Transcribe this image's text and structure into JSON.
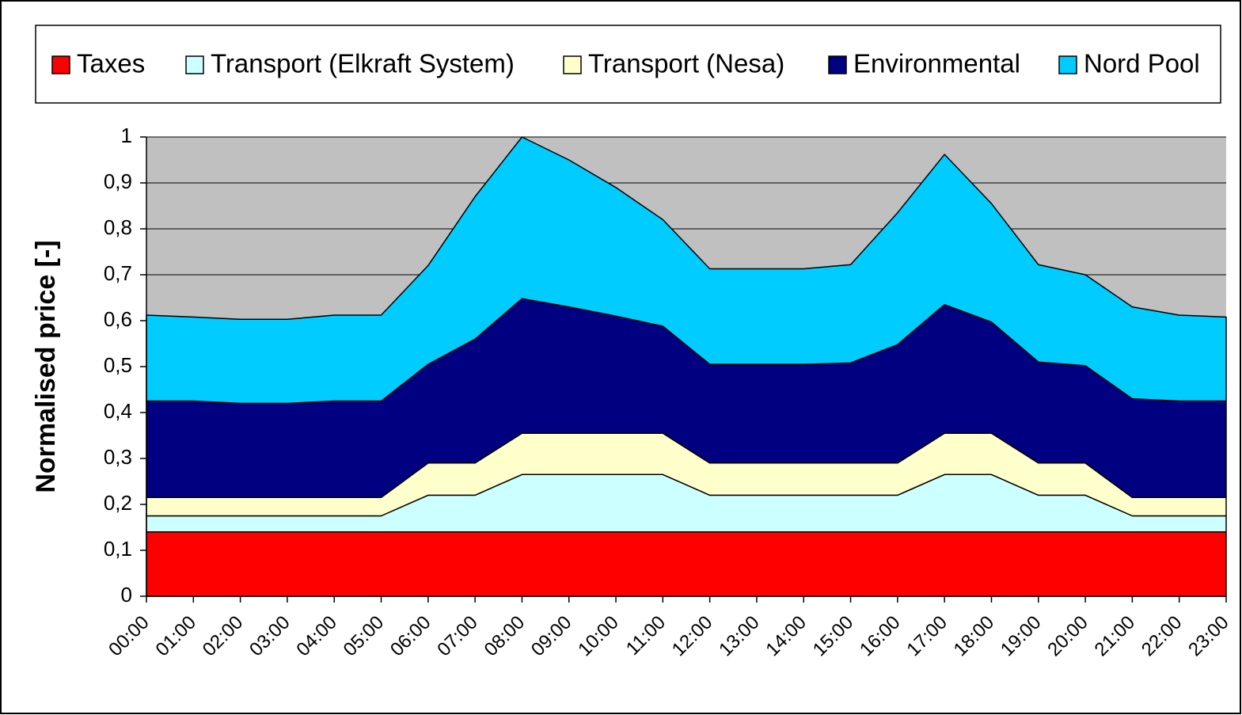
{
  "chart_data": {
    "type": "stacked_area",
    "y_label": "Normalised price [-]",
    "categories": [
      "00:00",
      "01:00",
      "02:00",
      "03:00",
      "04:00",
      "05:00",
      "06:00",
      "07:00",
      "08:00",
      "09:00",
      "10:00",
      "11:00",
      "12:00",
      "13:00",
      "14:00",
      "15:00",
      "16:00",
      "17:00",
      "18:00",
      "19:00",
      "20:00",
      "21:00",
      "22:00",
      "23:00"
    ],
    "series": [
      {
        "name": "Taxes",
        "color": "#ff0000",
        "values": [
          0.14,
          0.14,
          0.14,
          0.14,
          0.14,
          0.14,
          0.14,
          0.14,
          0.14,
          0.14,
          0.14,
          0.14,
          0.14,
          0.14,
          0.14,
          0.14,
          0.14,
          0.14,
          0.14,
          0.14,
          0.14,
          0.14,
          0.14,
          0.14
        ]
      },
      {
        "name": "Transport (Elkraft System)",
        "color": "#ccffff",
        "values": [
          0.035,
          0.035,
          0.035,
          0.035,
          0.035,
          0.035,
          0.08,
          0.08,
          0.125,
          0.125,
          0.125,
          0.125,
          0.08,
          0.08,
          0.08,
          0.08,
          0.08,
          0.125,
          0.125,
          0.08,
          0.08,
          0.035,
          0.035,
          0.035
        ]
      },
      {
        "name": "Transport (Nesa)",
        "color": "#ffffcc",
        "values": [
          0.04,
          0.04,
          0.04,
          0.04,
          0.04,
          0.04,
          0.07,
          0.07,
          0.09,
          0.09,
          0.09,
          0.09,
          0.07,
          0.07,
          0.07,
          0.07,
          0.07,
          0.09,
          0.09,
          0.07,
          0.07,
          0.04,
          0.04,
          0.04
        ]
      },
      {
        "name": "Environmental",
        "color": "#000080",
        "values": [
          0.21,
          0.21,
          0.205,
          0.205,
          0.21,
          0.21,
          0.215,
          0.27,
          0.293,
          0.275,
          0.255,
          0.233,
          0.215,
          0.215,
          0.215,
          0.218,
          0.258,
          0.28,
          0.242,
          0.22,
          0.212,
          0.215,
          0.21,
          0.21
        ]
      },
      {
        "name": "Nord Pool",
        "color": "#00ccff",
        "values": [
          0.187,
          0.183,
          0.183,
          0.183,
          0.187,
          0.187,
          0.215,
          0.31,
          0.352,
          0.32,
          0.28,
          0.232,
          0.208,
          0.208,
          0.208,
          0.214,
          0.287,
          0.327,
          0.258,
          0.212,
          0.198,
          0.2,
          0.187,
          0.183
        ]
      }
    ],
    "ylim": [
      0,
      1
    ],
    "yticks": [
      0,
      {
        "value": 0.1,
        "label": "0,1"
      },
      {
        "value": 0.2,
        "label": "0,2"
      },
      {
        "value": 0.3,
        "label": "0,3"
      },
      {
        "value": 0.4,
        "label": "0,4"
      },
      {
        "value": 0.5,
        "label": "0,5"
      },
      {
        "value": 0.6,
        "label": "0,6"
      },
      {
        "value": 0.7,
        "label": "0,7"
      },
      {
        "value": 0.8,
        "label": "0,8"
      },
      {
        "value": 0.9,
        "label": "0,9"
      },
      1
    ],
    "grid": true,
    "plot_background": "#c0c0c0",
    "legend": "top"
  }
}
